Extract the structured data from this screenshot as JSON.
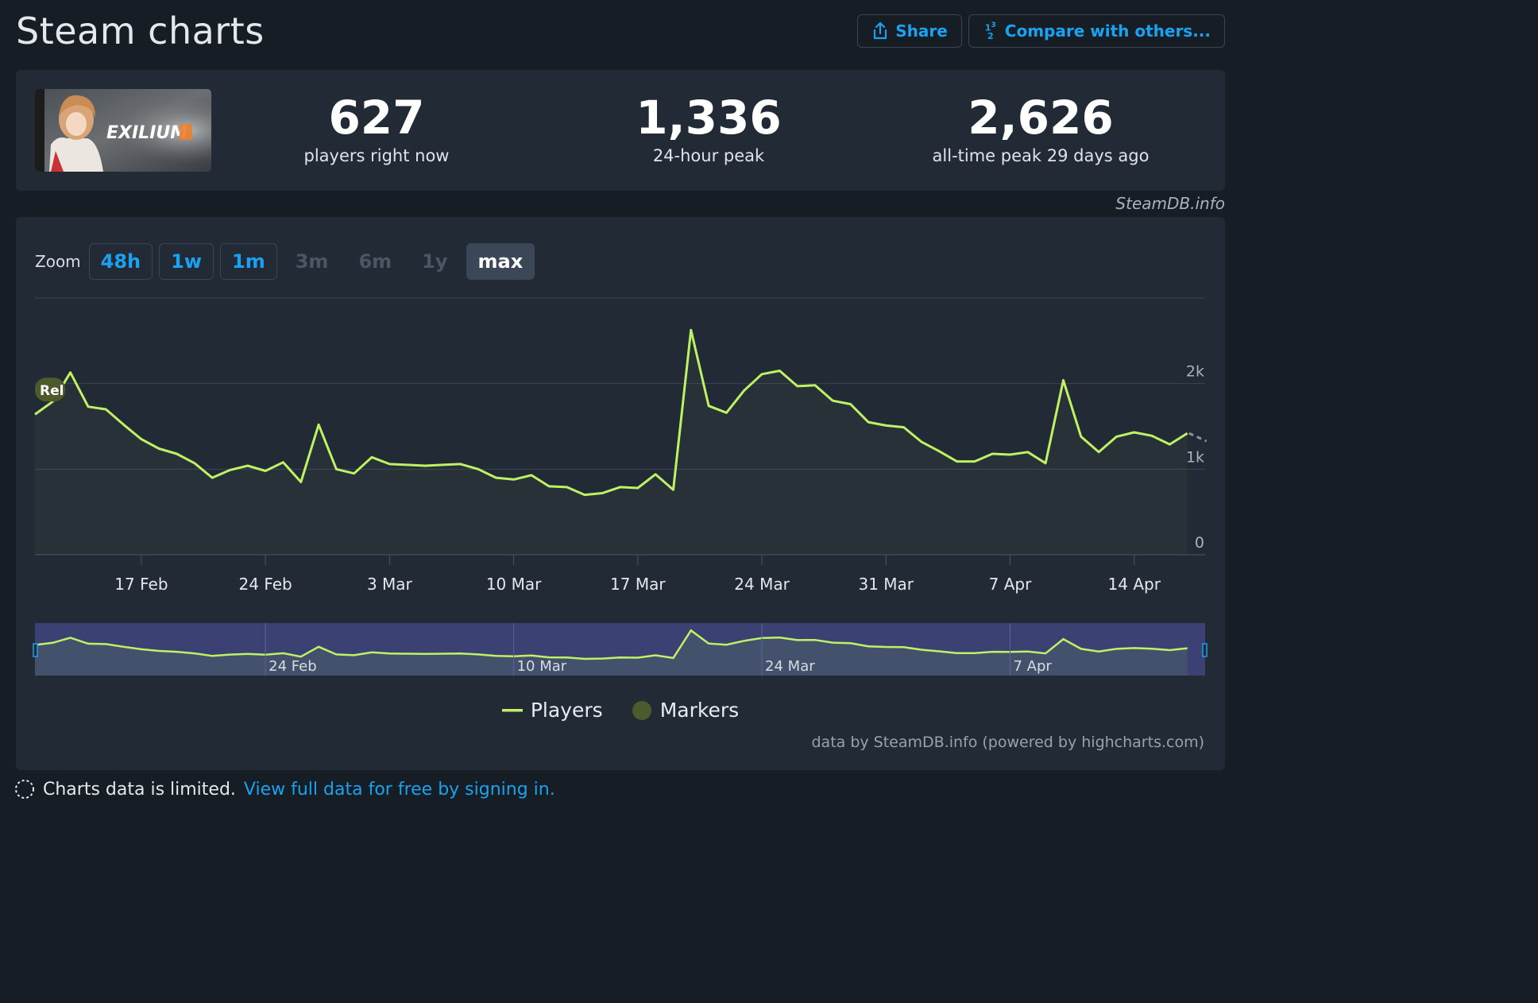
{
  "page": {
    "title": "Steam charts"
  },
  "actions": {
    "share_label": "Share",
    "compare_label": "Compare with others..."
  },
  "game": {
    "logo_text": "EXILIUM"
  },
  "stats": [
    {
      "value": "627",
      "label": "players right now"
    },
    {
      "value": "1,336",
      "label": "24-hour peak"
    },
    {
      "value": "2,626",
      "label": "all-time peak 29 days ago"
    }
  ],
  "credit_top": "SteamDB.info",
  "zoom": {
    "label": "Zoom",
    "buttons": [
      {
        "label": "48h",
        "state": "enabled"
      },
      {
        "label": "1w",
        "state": "enabled"
      },
      {
        "label": "1m",
        "state": "enabled"
      },
      {
        "label": "3m",
        "state": "disabled"
      },
      {
        "label": "6m",
        "state": "disabled"
      },
      {
        "label": "1y",
        "state": "disabled"
      },
      {
        "label": "max",
        "state": "active"
      }
    ]
  },
  "chart_data": {
    "type": "line",
    "series": [
      {
        "name": "Players",
        "color": "#bef264"
      }
    ],
    "x_unit": "date",
    "x_ticks": [
      "17 Feb",
      "24 Feb",
      "3 Mar",
      "10 Mar",
      "17 Mar",
      "24 Mar",
      "31 Mar",
      "7 Apr",
      "14 Apr"
    ],
    "y_ticks": [
      "0",
      "1k",
      "2k"
    ],
    "ylim": [
      0,
      3000
    ],
    "xlim": [
      "2025-02-11",
      "2025-04-18"
    ],
    "points": [
      [
        "2025-02-11",
        1640
      ],
      [
        "2025-02-12",
        1790
      ],
      [
        "2025-02-13",
        2130
      ],
      [
        "2025-02-14",
        1730
      ],
      [
        "2025-02-15",
        1700
      ],
      [
        "2025-02-16",
        1520
      ],
      [
        "2025-02-17",
        1350
      ],
      [
        "2025-02-18",
        1240
      ],
      [
        "2025-02-19",
        1180
      ],
      [
        "2025-02-20",
        1070
      ],
      [
        "2025-02-21",
        900
      ],
      [
        "2025-02-22",
        990
      ],
      [
        "2025-02-23",
        1040
      ],
      [
        "2025-02-24",
        980
      ],
      [
        "2025-02-25",
        1080
      ],
      [
        "2025-02-26",
        850
      ],
      [
        "2025-02-27",
        1520
      ],
      [
        "2025-02-28",
        1000
      ],
      [
        "2025-03-01",
        950
      ],
      [
        "2025-03-02",
        1140
      ],
      [
        "2025-03-03",
        1060
      ],
      [
        "2025-03-04",
        1050
      ],
      [
        "2025-03-05",
        1040
      ],
      [
        "2025-03-06",
        1050
      ],
      [
        "2025-03-07",
        1060
      ],
      [
        "2025-03-08",
        1000
      ],
      [
        "2025-03-09",
        900
      ],
      [
        "2025-03-10",
        880
      ],
      [
        "2025-03-11",
        930
      ],
      [
        "2025-03-12",
        800
      ],
      [
        "2025-03-13",
        790
      ],
      [
        "2025-03-14",
        700
      ],
      [
        "2025-03-15",
        720
      ],
      [
        "2025-03-16",
        790
      ],
      [
        "2025-03-17",
        780
      ],
      [
        "2025-03-18",
        940
      ],
      [
        "2025-03-19",
        760
      ],
      [
        "2025-03-20",
        2626
      ],
      [
        "2025-03-21",
        1740
      ],
      [
        "2025-03-22",
        1660
      ],
      [
        "2025-03-23",
        1920
      ],
      [
        "2025-03-24",
        2110
      ],
      [
        "2025-03-25",
        2150
      ],
      [
        "2025-03-26",
        1970
      ],
      [
        "2025-03-27",
        1980
      ],
      [
        "2025-03-28",
        1800
      ],
      [
        "2025-03-29",
        1760
      ],
      [
        "2025-03-30",
        1550
      ],
      [
        "2025-03-31",
        1510
      ],
      [
        "2025-04-01",
        1490
      ],
      [
        "2025-04-02",
        1320
      ],
      [
        "2025-04-03",
        1210
      ],
      [
        "2025-04-04",
        1090
      ],
      [
        "2025-04-05",
        1090
      ],
      [
        "2025-04-06",
        1180
      ],
      [
        "2025-04-07",
        1170
      ],
      [
        "2025-04-08",
        1200
      ],
      [
        "2025-04-09",
        1070
      ],
      [
        "2025-04-10",
        2040
      ],
      [
        "2025-04-11",
        1380
      ],
      [
        "2025-04-12",
        1200
      ],
      [
        "2025-04-13",
        1380
      ],
      [
        "2025-04-14",
        1430
      ],
      [
        "2025-04-15",
        1390
      ],
      [
        "2025-04-16",
        1290
      ],
      [
        "2025-04-17",
        1420
      ]
    ],
    "markers": [
      {
        "label": "Rel",
        "date": "2025-02-11"
      }
    ],
    "navigator_ticks": [
      "24 Feb",
      "10 Mar",
      "24 Mar",
      "7 Apr"
    ],
    "legend": [
      {
        "name": "Players",
        "symbol": "line"
      },
      {
        "name": "Markers",
        "symbol": "circle"
      }
    ],
    "legend_position": "bottom-center",
    "credit": "data by SteamDB.info (powered by highcharts.com)"
  },
  "footer": {
    "notice": "Charts data is limited.",
    "link_text": "View full data for free by signing in."
  },
  "colors": {
    "background": "#171d25",
    "panel": "#222a35",
    "accent": "#1aa2f0",
    "series": "#bef264",
    "marker": "#4d5b2c"
  }
}
